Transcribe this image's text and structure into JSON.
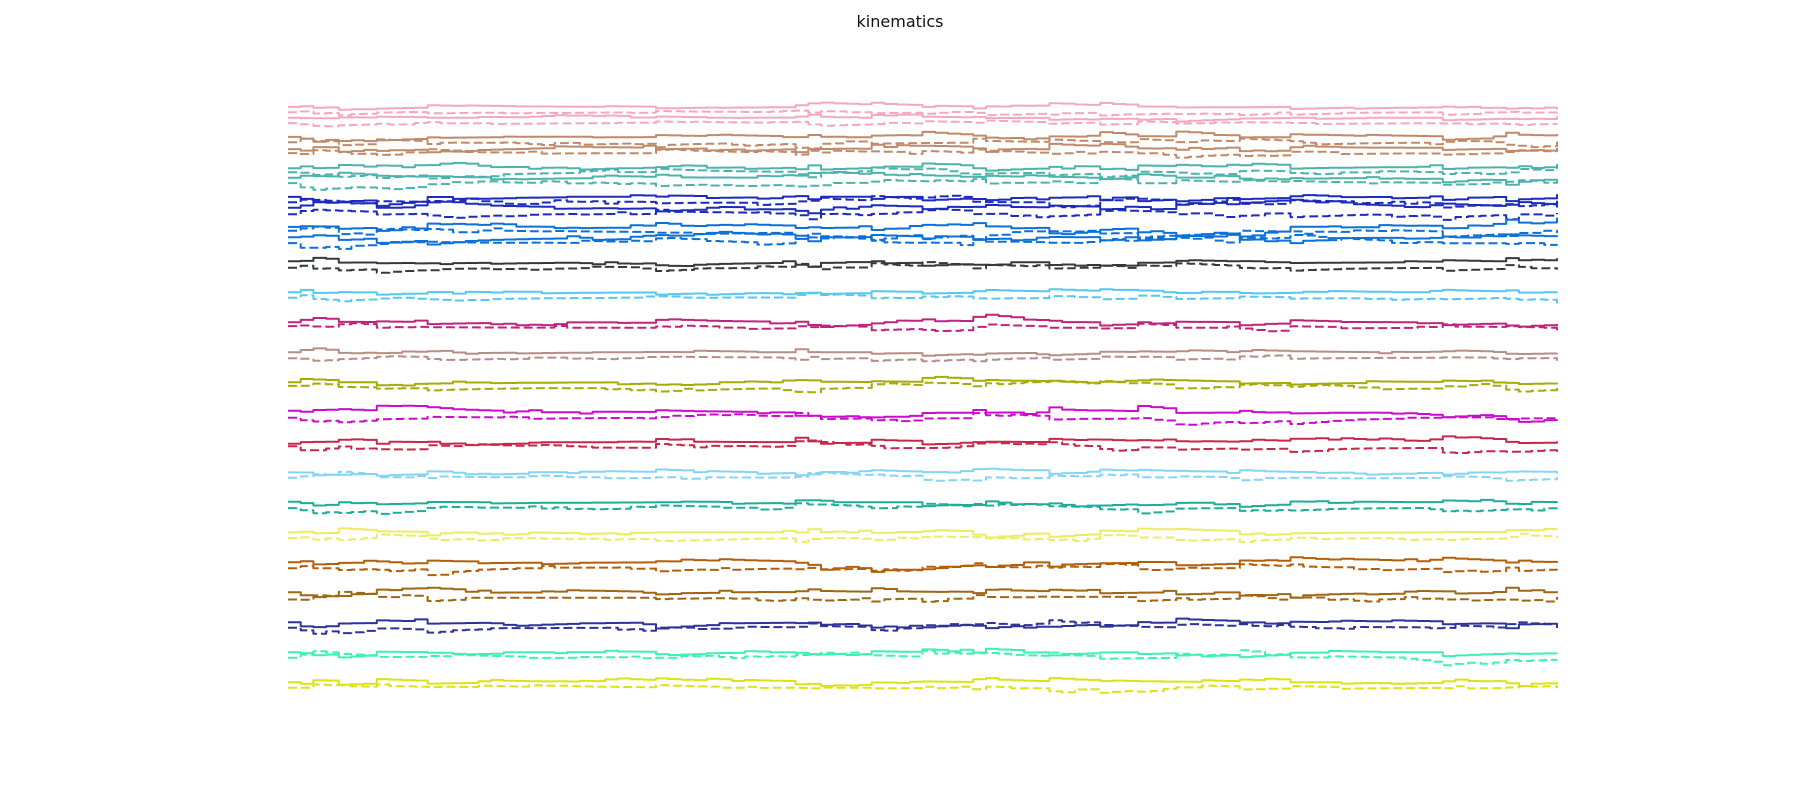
{
  "figure": {
    "title": "kinematics"
  },
  "chart_data": {
    "type": "line",
    "title": "kinematics",
    "xlabel": "",
    "ylabel": "",
    "axes_visible": false,
    "grid": false,
    "legend": "none",
    "x_range": [
      0,
      100
    ],
    "y_range": [
      -1,
      1
    ],
    "samples_per_trace": 101,
    "line_styles": [
      "solid",
      "dashed"
    ],
    "channels": [
      {
        "color": "#f4a8be",
        "amplitude": 0.35,
        "traces": 4
      },
      {
        "color": "#c08a68",
        "amplitude": 0.55,
        "traces": 4
      },
      {
        "color": "#4cb3ac",
        "amplitude": 0.55,
        "traces": 4
      },
      {
        "color": "#1a2bbd",
        "amplitude": 0.65,
        "traces": 4
      },
      {
        "color": "#0b70d8",
        "amplitude": 0.7,
        "traces": 4
      },
      {
        "color": "#36393c",
        "amplitude": 0.5,
        "traces": 2
      },
      {
        "color": "#55c8f0",
        "amplitude": 0.45,
        "traces": 2
      },
      {
        "color": "#c0237e",
        "amplitude": 0.5,
        "traces": 2
      },
      {
        "color": "#b88e84",
        "amplitude": 0.4,
        "traces": 2
      },
      {
        "color": "#a6ab08",
        "amplitude": 0.55,
        "traces": 2
      },
      {
        "color": "#cc0ccc",
        "amplitude": 0.55,
        "traces": 2
      },
      {
        "color": "#c72848",
        "amplitude": 0.55,
        "traces": 2
      },
      {
        "color": "#85d4f2",
        "amplitude": 0.45,
        "traces": 2
      },
      {
        "color": "#1fad97",
        "amplitude": 0.55,
        "traces": 2
      },
      {
        "color": "#ecec60",
        "amplitude": 0.5,
        "traces": 2
      },
      {
        "color": "#b35f0a",
        "amplitude": 0.6,
        "traces": 2
      },
      {
        "color": "#9f6614",
        "amplitude": 0.6,
        "traces": 2
      },
      {
        "color": "#2e3398",
        "amplitude": 0.6,
        "traces": 2
      },
      {
        "color": "#3ef0b3",
        "amplitude": 0.6,
        "traces": 2
      },
      {
        "color": "#dde215",
        "amplitude": 0.55,
        "traces": 2
      }
    ]
  }
}
